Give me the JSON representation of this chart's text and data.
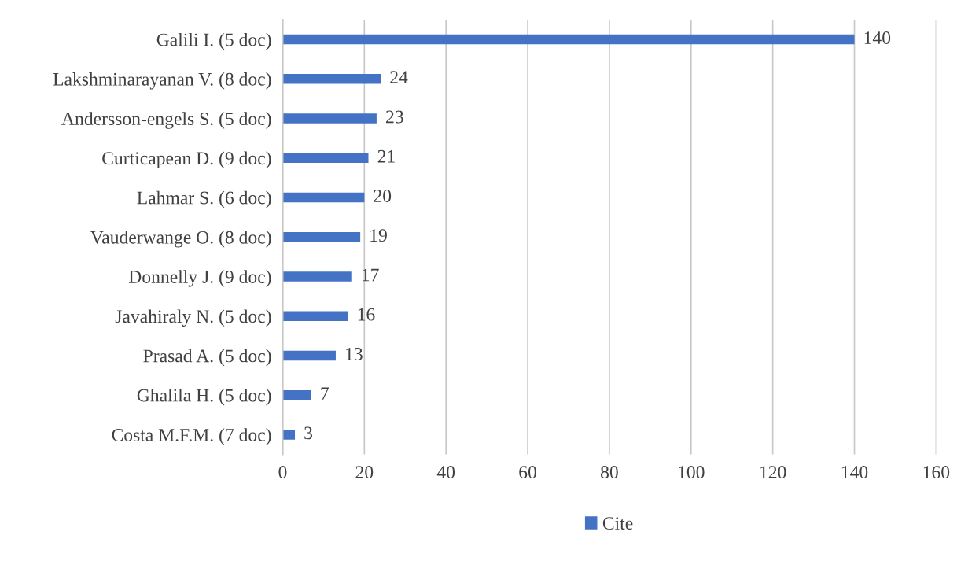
{
  "chart_data": {
    "type": "bar",
    "orientation": "horizontal",
    "categories": [
      "Galili I. (5 doc)",
      "Lakshminarayanan V. (8 doc)",
      "Andersson-engels S. (5 doc)",
      "Curticapean D. (9 doc)",
      "Lahmar S. (6 doc)",
      "Vauderwange O. (8 doc)",
      "Donnelly J. (9 doc)",
      "Javahiraly N. (5 doc)",
      "Prasad A. (5 doc)",
      "Ghalila H. (5 doc)",
      "Costa M.F.M. (7 doc)"
    ],
    "series": [
      {
        "name": "Cite",
        "color": "#4472c4",
        "values": [
          140,
          24,
          23,
          21,
          20,
          19,
          17,
          16,
          13,
          7,
          3
        ]
      }
    ],
    "xlim": [
      0,
      160
    ],
    "xticks": [
      0,
      20,
      40,
      60,
      80,
      100,
      120,
      140,
      160
    ],
    "grid": "x",
    "legend": "bottom",
    "data_labels": true
  }
}
